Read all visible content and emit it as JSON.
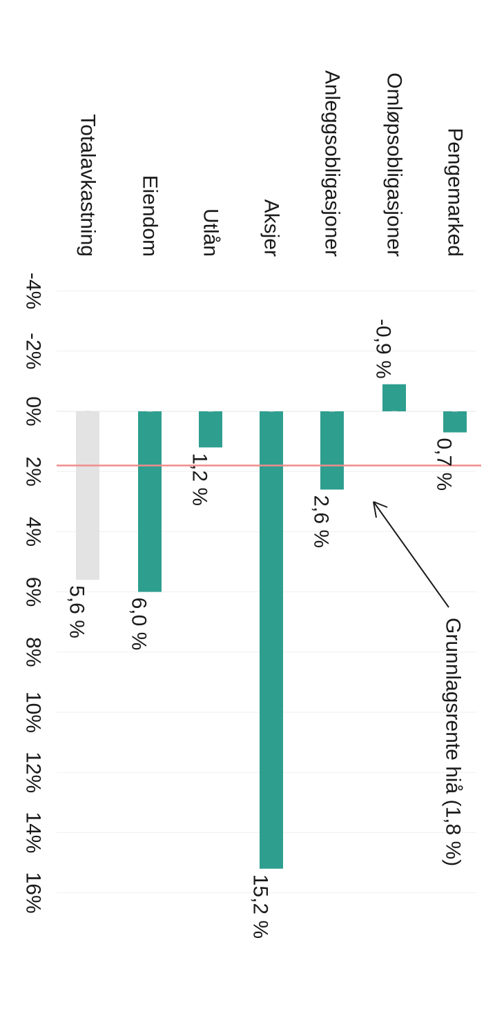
{
  "chart_data": {
    "type": "bar",
    "orientation": "horizontal",
    "categories": [
      "Pengemarked",
      "Omløpsobligasjoner",
      "Anleggsobligasjoner",
      "Aksjer",
      "Utlån",
      "Eiendom",
      "Totalavkastning"
    ],
    "values": [
      0.7,
      -0.9,
      2.6,
      15.2,
      1.2,
      6.0,
      5.6
    ],
    "data_labels": [
      "0,7 %",
      "-0,9 %",
      "2,6 %",
      "15,2 %",
      "1,2 %",
      "6,0 %",
      "5,6 %"
    ],
    "bar_colors": [
      "#2e9e8f",
      "#2e9e8f",
      "#2e9e8f",
      "#2e9e8f",
      "#2e9e8f",
      "#2e9e8f",
      "#e3e3e3"
    ],
    "xlim": [
      -4,
      16
    ],
    "ticks": [
      -4,
      -2,
      0,
      2,
      4,
      6,
      8,
      10,
      12,
      14,
      16
    ],
    "tick_labels": [
      "-4%",
      "-2%",
      "0%",
      "2%",
      "4%",
      "6%",
      "8%",
      "10%",
      "12%",
      "14%",
      "16%"
    ],
    "reference_line": {
      "value": 1.8,
      "label": "Grunnlagsrente hiå (1,8 %)",
      "color": "#f08c8c"
    },
    "grid": true,
    "rotation": "90° clockwise"
  }
}
